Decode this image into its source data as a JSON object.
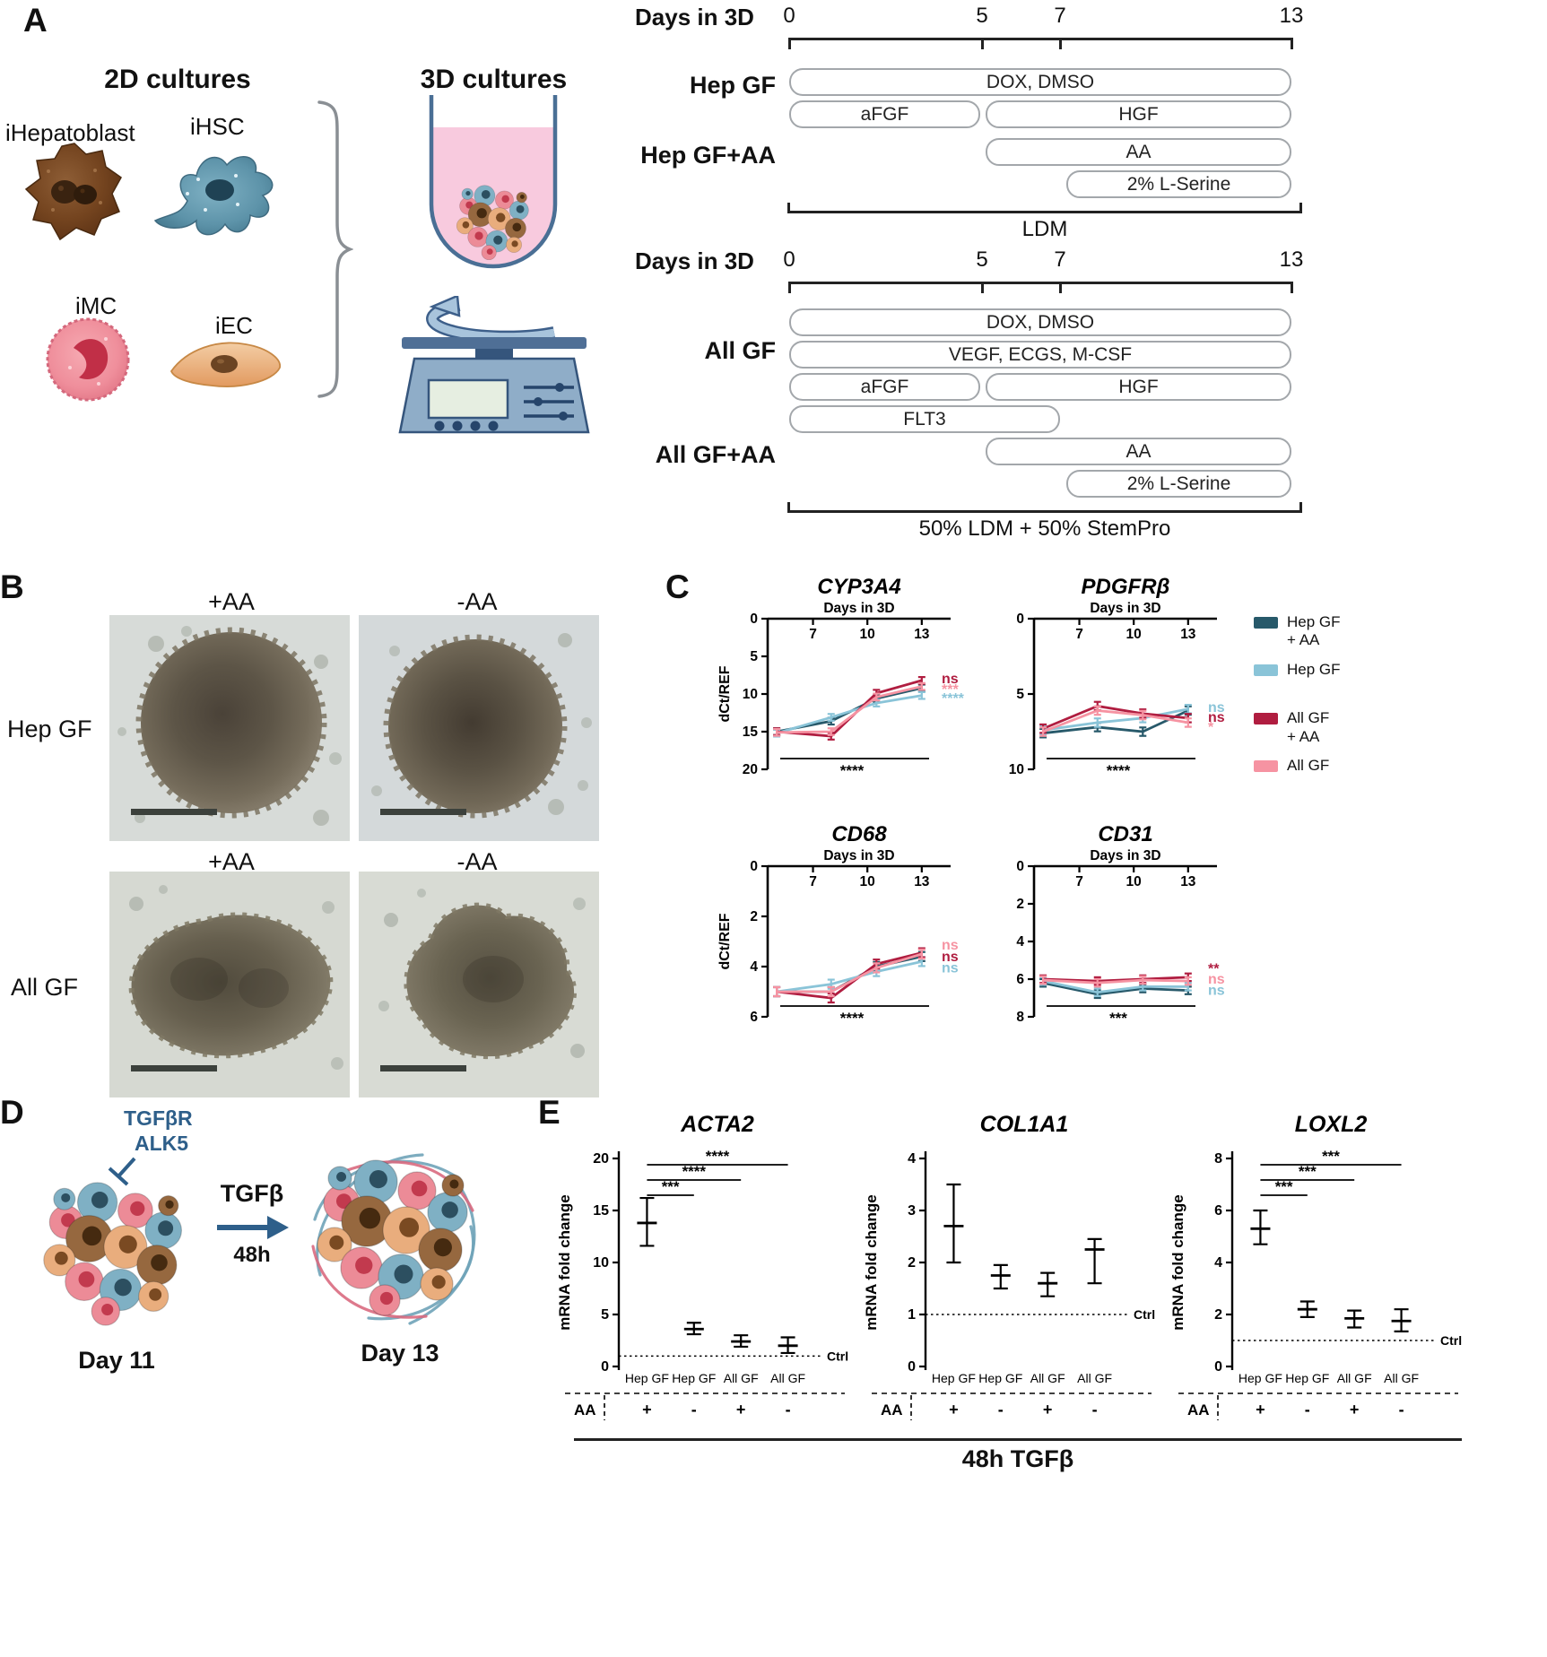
{
  "figure": {
    "panel_a_label": "A",
    "panel_b_label": "B",
    "panel_c_label": "C",
    "panel_d_label": "D",
    "panel_e_label": "E"
  },
  "panel_a": {
    "heading_2d": "2D cultures",
    "heading_3d": "3D cultures",
    "cell_labels": {
      "hepatoblast": "iHepatoblast",
      "hsc": "iHSC",
      "mc": "iMC",
      "ec": "iEC"
    },
    "timeline_hep": {
      "axis_title": "Days in 3D",
      "ticks": [
        "0",
        "5",
        "7",
        "13"
      ],
      "row1_label": "Hep GF",
      "row2_label": "Hep GF+AA",
      "bar_dox": "DOX, DMSO",
      "bar_afgf": "aFGF",
      "bar_hgf": "HGF",
      "bar_aa": "AA",
      "bar_lserine": "2% L-Serine",
      "medium": "LDM"
    },
    "timeline_all": {
      "axis_title": "Days in 3D",
      "ticks": [
        "0",
        "5",
        "7",
        "13"
      ],
      "row1_label": "All GF",
      "row2_label": "All GF+AA",
      "bar_dox": "DOX, DMSO",
      "bar_vegf": "VEGF, ECGS, M-CSF",
      "bar_afgf": "aFGF",
      "bar_hgf": "HGF",
      "bar_flt3": "FLT3",
      "bar_aa": "AA",
      "bar_lserine": "2% L-Serine",
      "medium": "50% LDM + 50% StemPro"
    }
  },
  "panel_b": {
    "top_row": {
      "col1": "+AA",
      "col2": "-AA",
      "row_label": "Hep GF"
    },
    "bottom_row": {
      "col1": "+AA",
      "col2": "-AA",
      "row_label": "All GF"
    }
  },
  "panel_c": {
    "legend": [
      {
        "lines": [
          "Hep GF",
          "+ AA"
        ],
        "color": "#27596a"
      },
      {
        "lines": [
          "Hep GF"
        ],
        "color": "#8ac4d8",
        "group_end": true
      },
      {
        "lines": [
          "All GF",
          "+ AA"
        ],
        "color": "#b01d40"
      },
      {
        "lines": [
          "All GF"
        ],
        "color": "#f693a2"
      }
    ]
  },
  "panel_d": {
    "receptor_line1": "TGFβR",
    "receptor_line2": "ALK5",
    "stimulus": "TGFβ",
    "duration": "48h",
    "day_left": "Day 11",
    "day_right": "Day 13"
  },
  "panel_e": {
    "footer": "48h TGFβ"
  },
  "chart_data": [
    {
      "id": "cyp3a4",
      "type": "line",
      "title": "CYP3A4",
      "x_axis_title": "Days in 3D",
      "ylabel": "dCt/REF",
      "x": [
        5,
        8,
        10.5,
        13
      ],
      "x_ticks": [
        7,
        10,
        13
      ],
      "xlim": [
        4.5,
        13.8
      ],
      "ylim": [
        0,
        20
      ],
      "y_ticks": [
        0,
        5,
        10,
        15,
        20
      ],
      "y_inverted": true,
      "error": 0.45,
      "series": [
        {
          "name": "Hep GF + AA",
          "color": "#27596a",
          "values": [
            15.0,
            13.6,
            10.6,
            9.2
          ]
        },
        {
          "name": "Hep GF",
          "color": "#8ac4d8",
          "values": [
            15.2,
            13.1,
            11.2,
            10.2
          ]
        },
        {
          "name": "All GF + AA",
          "color": "#b01d40",
          "values": [
            15.0,
            15.6,
            9.9,
            8.2
          ]
        },
        {
          "name": "All GF",
          "color": "#f693a2",
          "values": [
            15.1,
            15.0,
            10.4,
            9.0
          ]
        }
      ],
      "annotations": [
        {
          "text": "ns",
          "color": "#b01d40",
          "y": 8.0
        },
        {
          "text": "***",
          "color": "#f693a2",
          "y": 9.4
        },
        {
          "text": "****",
          "color": "#8ac4d8",
          "y": 10.6
        }
      ],
      "bottom_sig": "****"
    },
    {
      "id": "pdgfrb",
      "type": "line",
      "title": "PDGFRβ",
      "x_axis_title": "Days in 3D",
      "ylabel": "",
      "x": [
        5,
        8,
        10.5,
        13
      ],
      "x_ticks": [
        7,
        10,
        13
      ],
      "xlim": [
        4.5,
        13.8
      ],
      "ylim": [
        0,
        10
      ],
      "y_ticks": [
        0,
        5,
        10
      ],
      "y_inverted": true,
      "error": 0.28,
      "series": [
        {
          "name": "Hep GF + AA",
          "color": "#27596a",
          "values": [
            7.6,
            7.2,
            7.5,
            6.1
          ]
        },
        {
          "name": "Hep GF",
          "color": "#8ac4d8",
          "values": [
            7.4,
            6.9,
            6.6,
            6.0
          ]
        },
        {
          "name": "All GF + AA",
          "color": "#b01d40",
          "values": [
            7.3,
            5.8,
            6.3,
            6.6
          ]
        },
        {
          "name": "All GF",
          "color": "#f693a2",
          "values": [
            7.5,
            6.1,
            6.4,
            6.9
          ]
        }
      ],
      "annotations": [
        {
          "text": "ns",
          "color": "#8ac4d8",
          "y": 5.9
        },
        {
          "text": "ns",
          "color": "#b01d40",
          "y": 6.55
        },
        {
          "text": "*",
          "color": "#f693a2",
          "y": 7.2
        }
      ],
      "bottom_sig": "****"
    },
    {
      "id": "cd68",
      "type": "line",
      "title": "CD68",
      "x_axis_title": "Days in 3D",
      "ylabel": "dCt/REF",
      "x": [
        5,
        8,
        10.5,
        13
      ],
      "x_ticks": [
        7,
        10,
        13
      ],
      "xlim": [
        4.5,
        13.8
      ],
      "ylim": [
        0,
        6
      ],
      "y_ticks": [
        0,
        2,
        4,
        6
      ],
      "y_inverted": true,
      "error": 0.18,
      "series": [
        {
          "name": "Hep GF + AA",
          "color": "#27596a",
          "values": [
            5.0,
            5.0,
            4.0,
            3.6
          ]
        },
        {
          "name": "Hep GF",
          "color": "#8ac4d8",
          "values": [
            5.0,
            4.7,
            4.2,
            3.8
          ]
        },
        {
          "name": "All GF + AA",
          "color": "#b01d40",
          "values": [
            5.0,
            5.25,
            3.9,
            3.45
          ]
        },
        {
          "name": "All GF",
          "color": "#f693a2",
          "values": [
            5.0,
            5.0,
            4.05,
            3.5
          ]
        }
      ],
      "annotations": [
        {
          "text": "ns",
          "color": "#f693a2",
          "y": 3.15
        },
        {
          "text": "ns",
          "color": "#b01d40",
          "y": 3.6
        },
        {
          "text": "ns",
          "color": "#8ac4d8",
          "y": 4.05
        }
      ],
      "bottom_sig": "****"
    },
    {
      "id": "cd31",
      "type": "line",
      "title": "CD31",
      "x_axis_title": "Days in 3D",
      "ylabel": "",
      "x": [
        5,
        8,
        10.5,
        13
      ],
      "x_ticks": [
        7,
        10,
        13
      ],
      "xlim": [
        4.5,
        13.8
      ],
      "ylim": [
        0,
        8
      ],
      "y_ticks": [
        0,
        2,
        4,
        6,
        8
      ],
      "y_inverted": true,
      "error": 0.2,
      "series": [
        {
          "name": "Hep GF + AA",
          "color": "#27596a",
          "values": [
            6.2,
            6.8,
            6.5,
            6.6
          ]
        },
        {
          "name": "Hep GF",
          "color": "#8ac4d8",
          "values": [
            6.1,
            6.7,
            6.4,
            6.4
          ]
        },
        {
          "name": "All GF + AA",
          "color": "#b01d40",
          "values": [
            6.0,
            6.1,
            6.0,
            5.9
          ]
        },
        {
          "name": "All GF",
          "color": "#f693a2",
          "values": [
            6.05,
            6.2,
            6.05,
            6.1
          ]
        }
      ],
      "annotations": [
        {
          "text": "**",
          "color": "#b01d40",
          "y": 5.45
        },
        {
          "text": "ns",
          "color": "#f693a2",
          "y": 6.0
        },
        {
          "text": "ns",
          "color": "#8ac4d8",
          "y": 6.6
        }
      ],
      "bottom_sig": "***"
    },
    {
      "id": "acta2",
      "type": "scatter",
      "title": "ACTA2",
      "ylabel": "mRNA fold change",
      "ylim": [
        0,
        20
      ],
      "y_ticks": [
        0,
        5,
        10,
        15,
        20
      ],
      "categories": [
        "Hep GF",
        "Hep GF",
        "All GF",
        "All GF"
      ],
      "aa_label": "AA",
      "aa_signs": [
        "+",
        "-",
        "+",
        "-"
      ],
      "means": [
        13.8,
        3.6,
        2.4,
        2.0
      ],
      "err_high": [
        16.2,
        4.2,
        3.0,
        2.8
      ],
      "err_low": [
        11.6,
        3.1,
        1.9,
        1.3
      ],
      "control": {
        "value": 1,
        "label": "Ctrl"
      },
      "significance": [
        {
          "from": 0,
          "to": 1,
          "label": "***"
        },
        {
          "from": 0,
          "to": 2,
          "label": "****"
        },
        {
          "from": 0,
          "to": 3,
          "label": "****"
        }
      ]
    },
    {
      "id": "col1a1",
      "type": "scatter",
      "title": "COL1A1",
      "ylabel": "mRNA fold change",
      "ylim": [
        0,
        4
      ],
      "y_ticks": [
        0,
        1,
        2,
        3,
        4
      ],
      "categories": [
        "Hep GF",
        "Hep GF",
        "All GF",
        "All GF"
      ],
      "aa_label": "AA",
      "aa_signs": [
        "+",
        "-",
        "+",
        "-"
      ],
      "means": [
        2.7,
        1.75,
        1.6,
        2.25
      ],
      "err_high": [
        3.5,
        1.95,
        1.8,
        2.45
      ],
      "err_low": [
        2.0,
        1.5,
        1.35,
        1.6
      ],
      "control": {
        "value": 1,
        "label": "Ctrl"
      },
      "significance": []
    },
    {
      "id": "loxl2",
      "type": "scatter",
      "title": "LOXL2",
      "ylabel": "mRNA fold change",
      "ylim": [
        0,
        8
      ],
      "y_ticks": [
        0,
        2,
        4,
        6,
        8
      ],
      "categories": [
        "Hep GF",
        "Hep GF",
        "All GF",
        "All GF"
      ],
      "aa_label": "AA",
      "aa_signs": [
        "+",
        "-",
        "+",
        "-"
      ],
      "means": [
        5.3,
        2.2,
        1.85,
        1.75
      ],
      "err_high": [
        6.0,
        2.5,
        2.15,
        2.2
      ],
      "err_low": [
        4.7,
        1.9,
        1.5,
        1.35
      ],
      "control": {
        "value": 1,
        "label": "Ctrl"
      },
      "significance": [
        {
          "from": 0,
          "to": 1,
          "label": "***"
        },
        {
          "from": 0,
          "to": 2,
          "label": "***"
        },
        {
          "from": 0,
          "to": 3,
          "label": "***"
        }
      ]
    }
  ]
}
